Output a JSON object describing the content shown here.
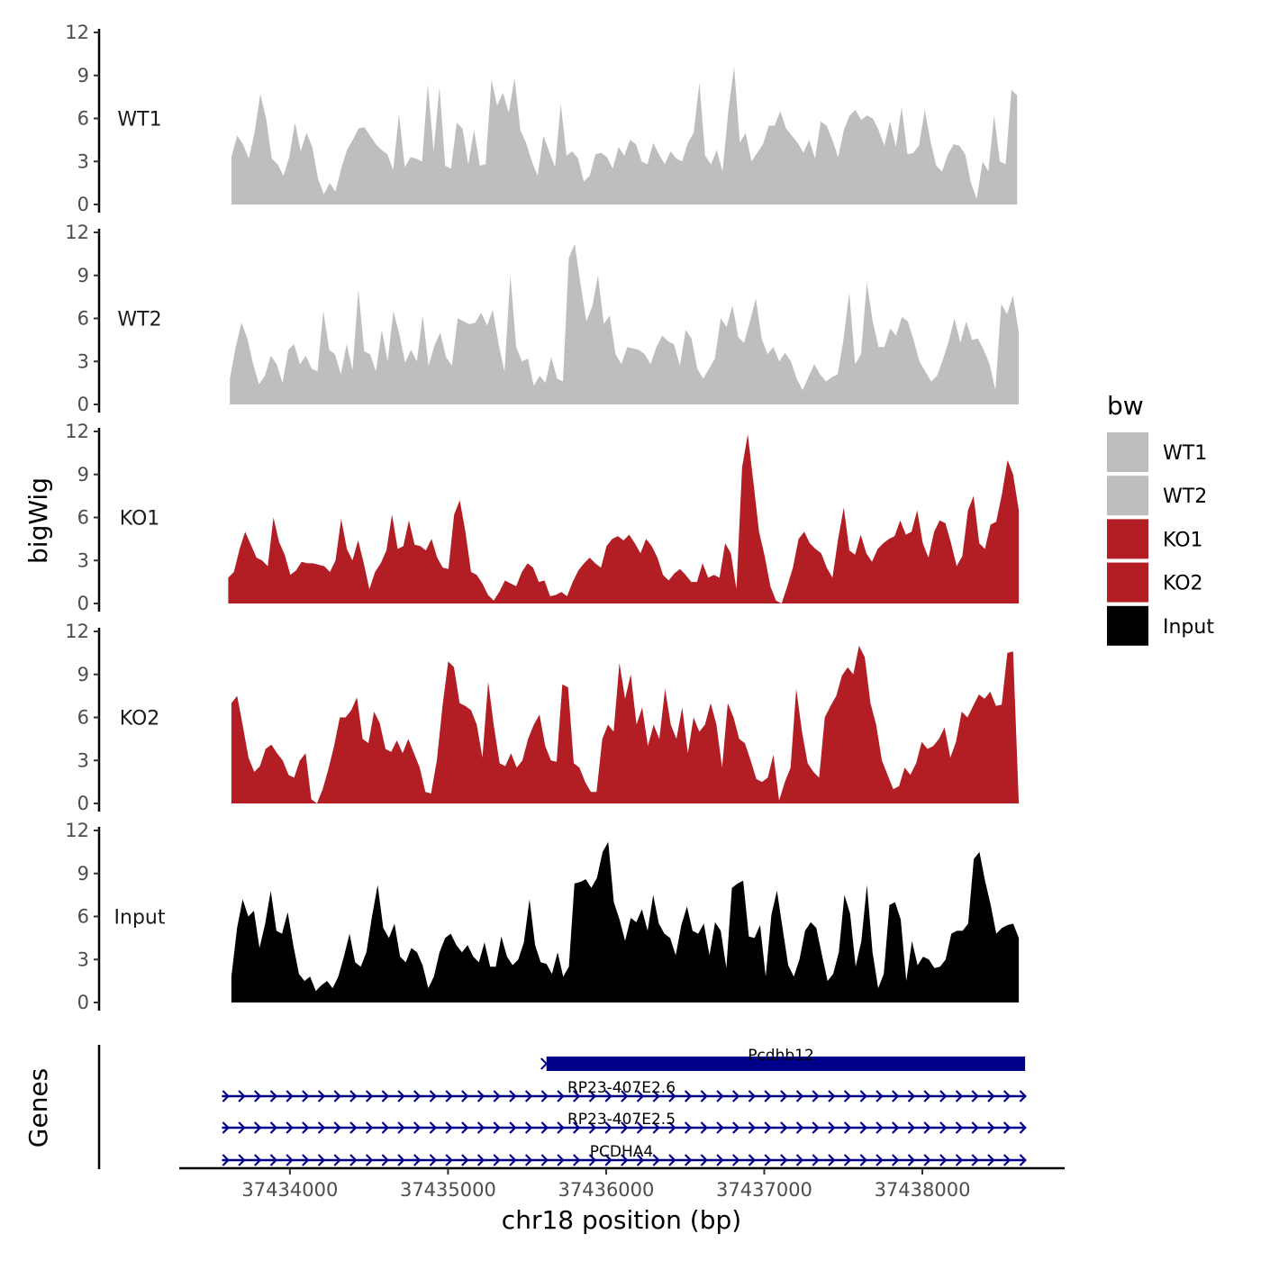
{
  "chart_data": {
    "type": "area",
    "y_axis_title": "bigWig",
    "genes_axis_title": "Genes",
    "x_axis_title": "chr18 position (bp)",
    "xlim": [
      37433300,
      37438900
    ],
    "x_ticks": [
      37434000,
      37435000,
      37436000,
      37437000,
      37438000
    ],
    "x_tick_labels": [
      "37434000",
      "37435000",
      "37436000",
      "37437000",
      "37438000"
    ],
    "ylim": [
      0,
      12
    ],
    "y_ticks": [
      0,
      3,
      6,
      9,
      12
    ],
    "y_tick_labels": [
      "0",
      "3",
      "6",
      "9",
      "12"
    ],
    "tracks": [
      {
        "name": "WT1",
        "color": "#BEBEBE",
        "x_start": 37433630,
        "x_end": 37438600,
        "values": [
          3.3,
          4.8,
          4.2,
          3.2,
          5.0,
          7.7,
          6.0,
          3.2,
          2.8,
          2.0,
          3.3,
          5.7,
          3.7,
          5.0,
          4.0,
          1.8,
          0.7,
          1.5,
          0.9,
          2.5,
          3.8,
          4.5,
          5.3,
          5.4,
          4.8,
          4.2,
          3.8,
          3.5,
          2.4,
          6.3,
          2.6,
          3.3,
          3.2,
          3.0,
          8.4,
          3.7,
          8.2,
          2.7,
          2.5,
          5.7,
          5.3,
          2.8,
          5.2,
          2.7,
          2.8,
          8.7,
          6.9,
          7.8,
          6.4,
          8.8,
          5.2,
          4.3,
          3.0,
          2.0,
          4.8,
          3.7,
          2.6,
          7.0,
          3.4,
          3.7,
          3.2,
          1.6,
          2.0,
          3.5,
          3.6,
          3.3,
          2.5,
          4.0,
          3.4,
          4.5,
          4.2,
          3.0,
          2.8,
          4.3,
          3.5,
          2.8,
          3.7,
          3.2,
          3.0,
          4.3,
          5.0,
          8.5,
          3.4,
          2.8,
          3.8,
          2.3,
          6.5,
          9.6,
          4.3,
          5.0,
          3.0,
          3.6,
          4.2,
          5.5,
          5.5,
          6.5,
          5.3,
          4.8,
          4.3,
          3.6,
          4.5,
          3.2,
          5.8,
          5.5,
          4.5,
          3.3,
          5.2,
          6.2,
          6.6,
          5.9,
          6.2,
          6.0,
          5.2,
          4.1,
          5.8,
          4.0,
          6.8,
          3.5,
          3.6,
          4.1,
          6.6,
          4.4,
          2.7,
          2.3,
          3.5,
          4.2,
          4.1,
          3.5,
          1.5,
          0.4,
          3.0,
          2.3,
          6.2,
          3.0,
          2.8,
          8.0,
          7.6
        ]
      },
      {
        "name": "WT2",
        "color": "#BEBEBE",
        "x_start": 37433620,
        "x_end": 37438610,
        "values": [
          1.8,
          4.0,
          5.7,
          4.6,
          2.8,
          1.4,
          2.0,
          3.4,
          2.8,
          1.5,
          3.8,
          4.2,
          2.8,
          3.4,
          2.5,
          2.3,
          6.5,
          3.8,
          3.5,
          2.1,
          4.2,
          2.4,
          8.0,
          3.7,
          3.5,
          2.3,
          5.2,
          3.0,
          6.5,
          4.9,
          2.9,
          3.8,
          3.0,
          6.2,
          2.7,
          4.1,
          5.0,
          3.3,
          2.7,
          6.0,
          5.8,
          5.6,
          5.7,
          6.4,
          5.5,
          6.6,
          4.2,
          2.3,
          9.0,
          4.0,
          3.0,
          3.2,
          1.3,
          2.0,
          1.5,
          3.3,
          1.8,
          1.6,
          10.2,
          11.2,
          8.4,
          5.8,
          6.8,
          9.0,
          5.6,
          6.2,
          3.5,
          2.8,
          4.0,
          3.9,
          3.8,
          3.5,
          2.8,
          4.0,
          4.8,
          4.4,
          4.2,
          2.7,
          5.2,
          4.6,
          2.5,
          1.8,
          2.5,
          3.2,
          6.0,
          5.4,
          6.9,
          4.7,
          4.3,
          5.8,
          7.4,
          4.6,
          3.5,
          4.0,
          3.0,
          3.6,
          3.0,
          1.8,
          1.0,
          1.9,
          2.8,
          2.1,
          1.6,
          1.9,
          2.1,
          4.5,
          7.8,
          2.8,
          3.5,
          8.5,
          5.8,
          4.0,
          4.0,
          5.3,
          4.8,
          6.1,
          5.8,
          4.5,
          3.0,
          2.3,
          1.6,
          2.0,
          3.1,
          4.4,
          6.0,
          4.3,
          5.8,
          4.5,
          4.6,
          3.8,
          2.8,
          1.0,
          7.0,
          6.3,
          7.6,
          5.0
        ]
      },
      {
        "name": "KO1",
        "color": "#B21E23",
        "x_start": 37433610,
        "x_end": 37438610,
        "values": [
          1.8,
          2.2,
          3.8,
          5.0,
          4.1,
          3.2,
          3.0,
          2.6,
          6.0,
          4.3,
          3.4,
          2.0,
          2.3,
          2.9,
          2.8,
          2.8,
          2.7,
          2.6,
          2.2,
          3.0,
          5.9,
          3.8,
          3.0,
          4.4,
          2.8,
          1.0,
          2.2,
          2.8,
          3.7,
          6.2,
          3.8,
          4.0,
          5.8,
          4.1,
          4.0,
          3.7,
          4.5,
          3.2,
          2.5,
          2.4,
          6.2,
          7.2,
          5.0,
          2.2,
          2.0,
          1.4,
          0.6,
          0.2,
          0.8,
          1.6,
          1.4,
          1.2,
          2.2,
          2.8,
          2.5,
          1.5,
          1.6,
          0.5,
          0.6,
          0.8,
          0.5,
          1.5,
          2.3,
          2.8,
          3.2,
          2.8,
          2.5,
          4.0,
          4.5,
          4.7,
          4.4,
          4.8,
          4.2,
          3.5,
          4.5,
          4.0,
          3.2,
          2.0,
          1.6,
          2.1,
          2.4,
          2.0,
          1.5,
          1.5,
          2.8,
          1.8,
          2.0,
          1.8,
          4.2,
          3.5,
          1.0,
          9.5,
          11.8,
          8.5,
          5.0,
          3.3,
          1.2,
          0.2,
          0.0,
          1.2,
          2.5,
          4.5,
          5.0,
          4.2,
          3.8,
          3.5,
          2.5,
          1.8,
          4.5,
          6.7,
          3.7,
          3.4,
          4.8,
          3.5,
          2.9,
          3.8,
          4.2,
          4.5,
          4.7,
          5.8,
          4.8,
          5.0,
          6.5,
          4.2,
          3.2,
          5.0,
          5.8,
          5.6,
          4.2,
          2.6,
          3.3,
          6.5,
          7.5,
          4.2,
          3.8,
          5.5,
          5.7,
          7.6,
          10.0,
          9.0,
          6.5
        ]
      },
      {
        "name": "KO2",
        "color": "#B21E23",
        "x_start": 37433630,
        "x_end": 37438610,
        "values": [
          7.0,
          7.5,
          5.4,
          3.2,
          2.2,
          2.6,
          3.8,
          4.1,
          3.5,
          3.0,
          2.0,
          1.8,
          3.0,
          3.5,
          0.3,
          0.0,
          1.0,
          2.4,
          4.0,
          6.0,
          6.0,
          6.5,
          7.4,
          4.5,
          4.2,
          6.4,
          5.6,
          3.8,
          3.6,
          4.4,
          3.5,
          4.5,
          3.5,
          2.5,
          0.8,
          0.7,
          3.0,
          6.8,
          9.9,
          9.5,
          7.0,
          6.8,
          6.5,
          5.5,
          3.2,
          8.5,
          5.4,
          2.8,
          2.6,
          3.5,
          2.5,
          3.0,
          4.5,
          5.5,
          6.2,
          4.0,
          3.0,
          2.9,
          8.3,
          8.1,
          2.8,
          2.5,
          1.5,
          0.8,
          0.8,
          4.5,
          5.5,
          5.0,
          9.8,
          7.3,
          9.0,
          5.5,
          6.7,
          4.0,
          5.5,
          4.5,
          8.0,
          5.5,
          4.5,
          6.7,
          3.5,
          6.0,
          5.0,
          5.5,
          7.0,
          5.5,
          2.5,
          7.0,
          6.0,
          4.5,
          4.2,
          3.0,
          1.7,
          1.5,
          1.8,
          3.4,
          0.2,
          1.5,
          2.5,
          8.0,
          5.0,
          2.8,
          2.2,
          1.8,
          6.0,
          6.8,
          7.5,
          8.9,
          9.5,
          9.0,
          11.0,
          10.2,
          7.0,
          5.5,
          3.0,
          2.0,
          1.0,
          1.2,
          2.5,
          2.0,
          2.8,
          4.3,
          3.8,
          4.0,
          4.5,
          5.3,
          3.2,
          4.3,
          6.4,
          6.0,
          6.8,
          7.6,
          7.3,
          7.8,
          6.8,
          6.9,
          10.5,
          10.6,
          0.0
        ]
      },
      {
        "name": "Input",
        "color": "#000000",
        "x_start": 37433630,
        "x_end": 37438610,
        "values": [
          1.8,
          5.2,
          7.2,
          6.0,
          6.4,
          3.8,
          5.5,
          7.8,
          5.0,
          4.8,
          6.3,
          4.0,
          2.0,
          1.5,
          1.8,
          0.8,
          1.2,
          1.5,
          1.0,
          1.8,
          3.2,
          4.8,
          2.8,
          2.5,
          3.5,
          6.0,
          8.2,
          5.2,
          4.5,
          5.5,
          3.2,
          2.8,
          3.8,
          3.5,
          2.6,
          1.0,
          1.8,
          3.5,
          4.5,
          4.8,
          4.0,
          3.5,
          4.0,
          3.2,
          2.8,
          4.2,
          2.5,
          2.5,
          4.6,
          3.2,
          2.6,
          3.0,
          4.2,
          7.2,
          4.0,
          2.8,
          2.7,
          2.0,
          3.5,
          1.8,
          2.5,
          8.3,
          8.4,
          8.6,
          8.0,
          8.7,
          10.5,
          11.2,
          7.0,
          5.8,
          4.3,
          5.9,
          5.6,
          6.5,
          5.0,
          7.5,
          5.5,
          4.8,
          4.5,
          3.3,
          5.4,
          6.7,
          5.0,
          4.8,
          5.5,
          3.3,
          5.6,
          5.0,
          2.4,
          8.0,
          8.3,
          8.5,
          4.6,
          4.5,
          5.4,
          1.8,
          6.1,
          7.8,
          5.2,
          2.6,
          1.8,
          3.0,
          5.0,
          5.6,
          5.2,
          3.3,
          1.5,
          2.0,
          3.5,
          7.5,
          6.2,
          2.5,
          4.3,
          8.2,
          3.5,
          1.0,
          2.0,
          6.8,
          7.0,
          5.8,
          1.5,
          4.3,
          2.6,
          3.2,
          3.0,
          2.4,
          2.5,
          3.0,
          4.8,
          5.0,
          5.0,
          5.5,
          10.0,
          10.5,
          8.5,
          6.8,
          4.8,
          5.2,
          5.4,
          5.5,
          4.5
        ]
      }
    ],
    "legend": {
      "title": "bw",
      "position": "right",
      "items": [
        {
          "label": "WT1",
          "color": "#BEBEBE"
        },
        {
          "label": "WT2",
          "color": "#BEBEBE"
        },
        {
          "label": "KO1",
          "color": "#B21E23"
        },
        {
          "label": "KO2",
          "color": "#B21E23"
        },
        {
          "label": "Input",
          "color": "#000000"
        }
      ]
    },
    "genes": [
      {
        "name": "Pcdhb12",
        "start": 37435600,
        "end": 37438650,
        "strand": "+",
        "color": "#00008B",
        "thick": true
      },
      {
        "name": "RP23-407E2.6",
        "start": 37433570,
        "end": 37438650,
        "strand": "+",
        "color": "#00008B",
        "thick": false
      },
      {
        "name": "RP23-407E2.5",
        "start": 37433570,
        "end": 37438650,
        "strand": "+",
        "color": "#00008B",
        "thick": false
      },
      {
        "name": "PCDHA4",
        "start": 37433570,
        "end": 37438650,
        "strand": "+",
        "color": "#00008B",
        "thick": false
      }
    ]
  }
}
